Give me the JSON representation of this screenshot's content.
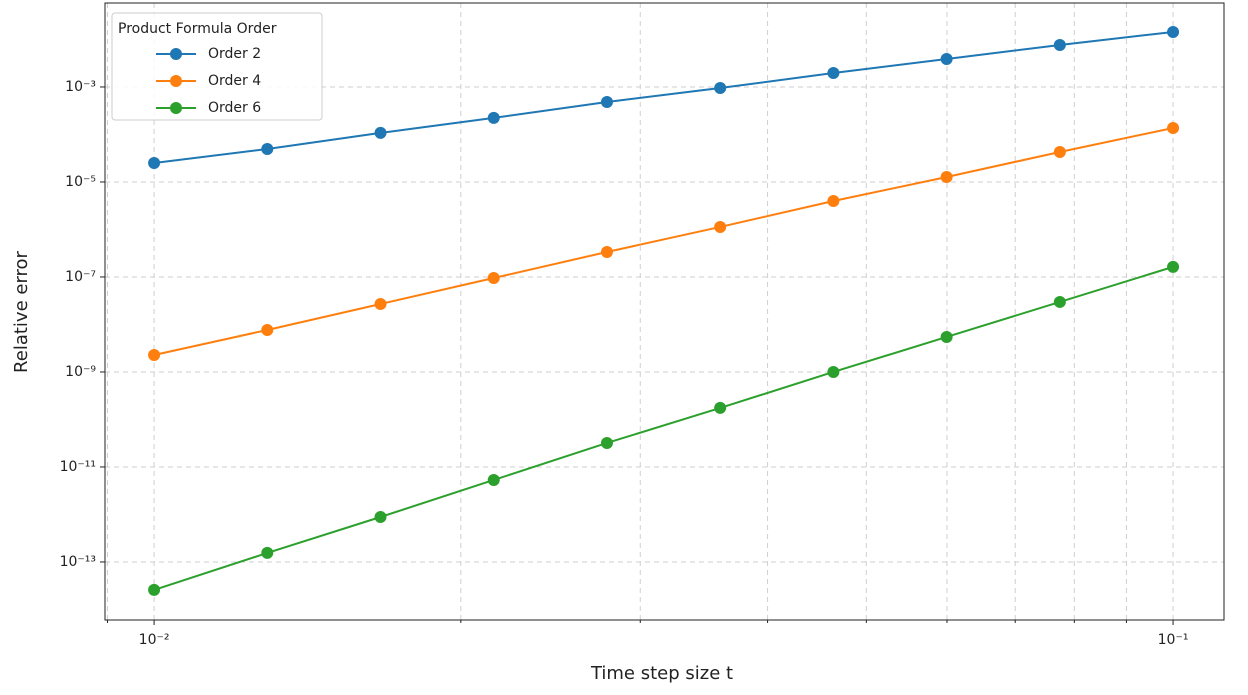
{
  "chart_data": {
    "type": "line",
    "x_label": "Time step size t",
    "y_label": "Relative error",
    "x_scale": "log",
    "y_scale": "log",
    "grid": true,
    "legend_title": "Product Formula Order",
    "legend_position": "upper-left",
    "x": [
      0.01,
      0.012915,
      0.016681,
      0.021544,
      0.027826,
      0.035938,
      0.046416,
      0.059948,
      0.077426,
      0.1
    ],
    "series": [
      {
        "name": "Order 2",
        "color": "#1f77b4",
        "values": [
          2.51e-05,
          4.95e-05,
          0.000108,
          0.000223,
          0.000483,
          0.00095,
          0.00197,
          0.00388,
          0.00766,
          0.0144
        ]
      },
      {
        "name": "Order 4",
        "color": "#ff7f0e",
        "values": [
          2.28e-09,
          7.66e-09,
          2.7e-08,
          9.5e-08,
          3.36e-07,
          1.13e-06,
          3.98e-06,
          1.27e-05,
          4.28e-05,
          0.000137
        ]
      },
      {
        "name": "Order 6",
        "color": "#2ca02c",
        "values": [
          2.58e-14,
          1.55e-13,
          8.85e-13,
          5.32e-12,
          3.2e-11,
          1.75e-10,
          1e-09,
          5.46e-09,
          2.98e-08,
          1.63e-07
        ]
      }
    ],
    "xlim": [
      0.00895,
      0.1122
    ],
    "ylim": [
      6e-15,
      0.0586
    ],
    "xticks": [
      {
        "value": 0.01,
        "label": "10⁻²"
      },
      {
        "value": 0.1,
        "label": "10⁻¹"
      }
    ],
    "xminor_ticks": [
      0.009,
      0.02,
      0.03,
      0.04,
      0.05,
      0.06,
      0.07,
      0.08,
      0.09
    ],
    "yticks": [
      {
        "value": 1e-13,
        "label": "10⁻¹³"
      },
      {
        "value": 1e-11,
        "label": "10⁻¹¹"
      },
      {
        "value": 1e-09,
        "label": "10⁻⁹"
      },
      {
        "value": 1e-07,
        "label": "10⁻⁷"
      },
      {
        "value": 1e-05,
        "label": "10⁻⁵"
      },
      {
        "value": 0.001,
        "label": "10⁻³"
      }
    ]
  }
}
